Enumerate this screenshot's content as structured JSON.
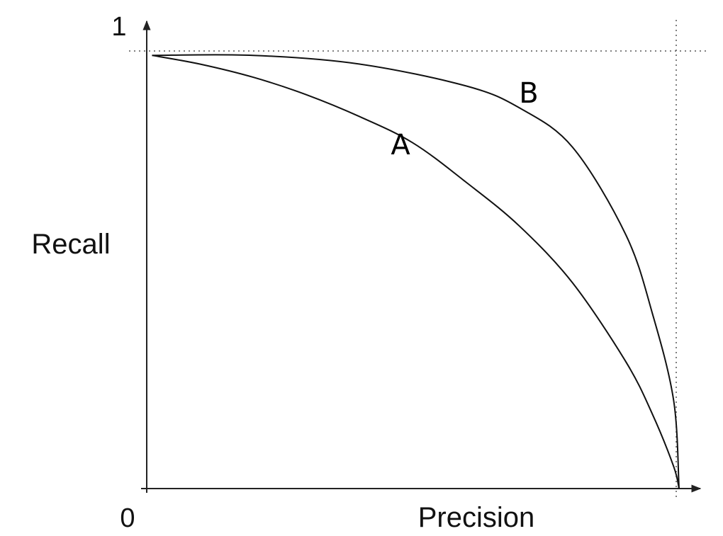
{
  "chart_data": {
    "type": "line",
    "title": "",
    "xlabel": "Precision",
    "ylabel": "Recall",
    "tick_labels": {
      "origin": "0",
      "y_max": "1"
    },
    "xlim": [
      0,
      1
    ],
    "ylim": [
      0,
      1
    ],
    "grid": false,
    "reference_lines": [
      {
        "orientation": "horizontal",
        "value": 1,
        "style": "dotted"
      },
      {
        "orientation": "vertical",
        "value": 1,
        "style": "dotted"
      }
    ],
    "series": [
      {
        "name": "A",
        "x": [
          0.01,
          0.1,
          0.2,
          0.3,
          0.4,
          0.5,
          0.6,
          0.7,
          0.8,
          0.9,
          0.95,
          0.99,
          1.0
        ],
        "y": [
          0.99,
          0.97,
          0.94,
          0.9,
          0.85,
          0.79,
          0.7,
          0.6,
          0.47,
          0.29,
          0.17,
          0.05,
          0.0
        ]
      },
      {
        "name": "B",
        "x": [
          0.01,
          0.2,
          0.4,
          0.6,
          0.7,
          0.8,
          0.9,
          0.95,
          0.99,
          1.0
        ],
        "y": [
          0.99,
          0.99,
          0.97,
          0.92,
          0.87,
          0.78,
          0.58,
          0.4,
          0.2,
          0.0
        ]
      }
    ]
  }
}
